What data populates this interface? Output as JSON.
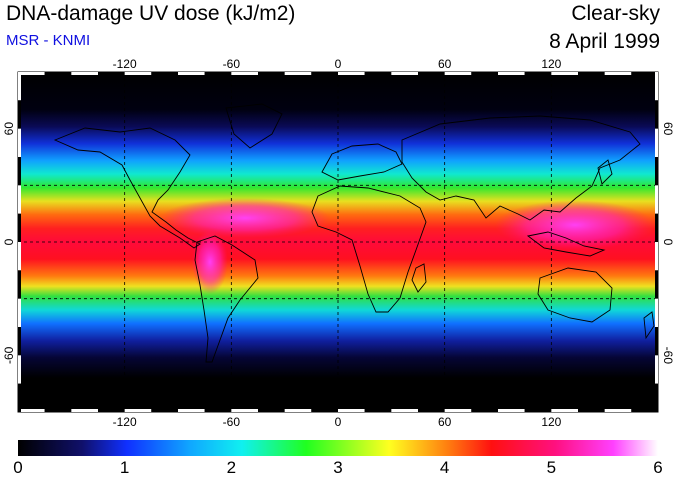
{
  "title": "DNA-damage UV dose (kJ/m2)",
  "source": "MSR - KNMI",
  "condition": "Clear-sky",
  "date": "8 April 1999",
  "colors": {
    "subtitle": "#1010e0",
    "border": "#000000",
    "grid": "#000000"
  },
  "map": {
    "projection": "equirectangular",
    "lon_range": [
      -180,
      180
    ],
    "lat_range": [
      -90,
      90
    ],
    "lon_ticks": [
      -120,
      -60,
      0,
      60,
      120
    ],
    "lon_tick_labels": [
      "-120",
      "-60",
      "0",
      "60",
      "120"
    ],
    "lat_ticks": [
      -60,
      0,
      60
    ],
    "lat_tick_labels_left": [
      "-60",
      "0",
      "60"
    ],
    "lat_tick_labels_right": [
      "-60",
      "0",
      "60"
    ],
    "grid_lat": [
      -30,
      0,
      30
    ],
    "grid_lon": [
      -120,
      -60,
      0,
      60,
      120
    ]
  },
  "colorbar": {
    "min": 0,
    "max": 6,
    "labels": [
      "0",
      "1",
      "2",
      "3",
      "4",
      "5",
      "6"
    ]
  }
}
